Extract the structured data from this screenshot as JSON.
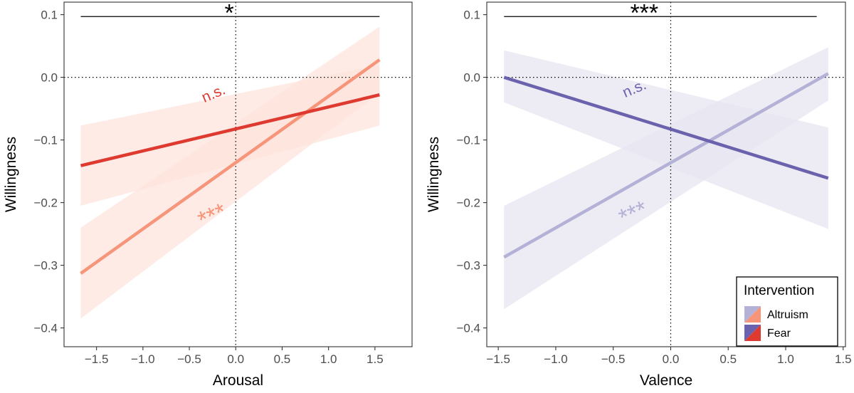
{
  "chart_data": [
    {
      "type": "line",
      "xlabel": "Arousal",
      "ylabel": "Willingness",
      "xlim": [
        -1.85,
        1.9
      ],
      "ylim": [
        -0.43,
        0.12
      ],
      "xticks": [
        -1.5,
        -1.0,
        -0.5,
        0.0,
        0.5,
        1.0,
        1.5
      ],
      "xtick_labels": [
        "−1.5",
        "−1.0",
        "−0.5",
        "0.0",
        "0.5",
        "1.0",
        "1.5"
      ],
      "yticks": [
        0.1,
        0.0,
        -0.1,
        -0.2,
        -0.3,
        -0.4
      ],
      "ytick_labels": [
        "0.1",
        "0.0",
        "−0.1",
        "−0.2",
        "−0.3",
        "−0.4"
      ],
      "grid": false,
      "reference_lines": {
        "x": 0,
        "y": 0
      },
      "series": [
        {
          "name": "Altruism",
          "color": "#f7957a",
          "band_color": "#fde3dc",
          "x": [
            -1.67,
            1.55
          ],
          "y": [
            -0.313,
            0.028
          ],
          "lower": [
            -0.385,
            -0.025
          ],
          "upper": [
            -0.24,
            0.081
          ],
          "significance": "***",
          "annotation_at": [
            -0.22,
            -0.233
          ]
        },
        {
          "name": "Fear",
          "color": "#de3a30",
          "band_color": "#fde3dc",
          "x": [
            -1.67,
            1.55
          ],
          "y": [
            -0.141,
            -0.028
          ],
          "lower": [
            -0.205,
            -0.077
          ],
          "upper": [
            -0.077,
            0.02
          ],
          "significance": "n.s.",
          "annotation_at": [
            -0.22,
            -0.033
          ]
        }
      ],
      "bracket": {
        "x_from": -1.67,
        "x_to": 1.55,
        "y": 0.097,
        "label": "*",
        "label_x": -0.07
      }
    },
    {
      "type": "line",
      "xlabel": "Valence",
      "ylabel": "Willingness",
      "xlim": [
        -1.6,
        1.52
      ],
      "ylim": [
        -0.43,
        0.12
      ],
      "xticks": [
        -1.5,
        -1.0,
        -0.5,
        0.0,
        0.5,
        1.0,
        1.5
      ],
      "xtick_labels": [
        "−1.5",
        "−1.0",
        "−0.5",
        "0.0",
        "0.5",
        "1.0",
        "1.5"
      ],
      "yticks": [
        0.1,
        0.0,
        -0.1,
        -0.2,
        -0.3,
        -0.4
      ],
      "ytick_labels": [
        "0.1",
        "0.0",
        "−0.1",
        "−0.2",
        "−0.3",
        "−0.4"
      ],
      "grid": false,
      "reference_lines": {
        "x": 0,
        "y": 0
      },
      "series": [
        {
          "name": "Altruism",
          "color": "#b4b1d6",
          "band_color": "#e6e4f1",
          "x": [
            -1.45,
            1.37
          ],
          "y": [
            -0.287,
            0.006
          ],
          "lower": [
            -0.37,
            -0.037
          ],
          "upper": [
            -0.205,
            0.048
          ],
          "significance": "***",
          "annotation_at": [
            -0.3,
            -0.229
          ]
        },
        {
          "name": "Fear",
          "color": "#6b62ad",
          "band_color": "#e6e4f1",
          "x": [
            -1.45,
            1.37
          ],
          "y": [
            0.0,
            -0.161
          ],
          "lower": [
            -0.04,
            -0.242
          ],
          "upper": [
            0.043,
            -0.08
          ],
          "significance": "n.s.",
          "annotation_at": [
            -0.3,
            -0.025
          ]
        }
      ],
      "bracket": {
        "x_from": -1.45,
        "x_to": 1.27,
        "y": 0.097,
        "label": "***",
        "label_x": -0.23
      }
    }
  ],
  "legend": {
    "title": "Intervention",
    "placement": "bottom-right",
    "items": [
      {
        "label": "Altruism",
        "colors": [
          "#b4b1d6",
          "#f7957a"
        ]
      },
      {
        "label": "Fear",
        "colors": [
          "#6b62ad",
          "#de3a30"
        ]
      }
    ]
  }
}
